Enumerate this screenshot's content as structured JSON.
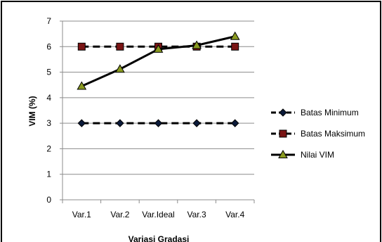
{
  "chart_data": {
    "type": "line",
    "categories": [
      "Var.1",
      "Var.2",
      "Var.Ideal",
      "Var.3",
      "Var.4"
    ],
    "series": [
      {
        "name": "Batas Minimum",
        "values": [
          3,
          3,
          3,
          3,
          3
        ],
        "marker": "diamond",
        "line_style": "dashed",
        "color": "#000000",
        "marker_fill": "#0b1a3a"
      },
      {
        "name": "Batas Maksimum",
        "values": [
          6,
          6,
          6,
          6,
          6
        ],
        "marker": "square",
        "line_style": "dashed",
        "color": "#000000",
        "marker_fill": "#7a1414"
      },
      {
        "name": "Nilai VIM",
        "values": [
          4.45,
          5.12,
          5.9,
          6.05,
          6.4
        ],
        "marker": "triangle",
        "line_style": "solid",
        "color": "#000000",
        "marker_fill": "#8a9a20"
      }
    ],
    "y_ticks": [
      "0",
      "1",
      "2",
      "3",
      "4",
      "5",
      "6",
      "7"
    ],
    "ylim": [
      0,
      7
    ],
    "xlabel": "Variasi Gradasi",
    "ylabel": "VIM (%)",
    "grid": "horizontal",
    "legend_position": "right"
  }
}
